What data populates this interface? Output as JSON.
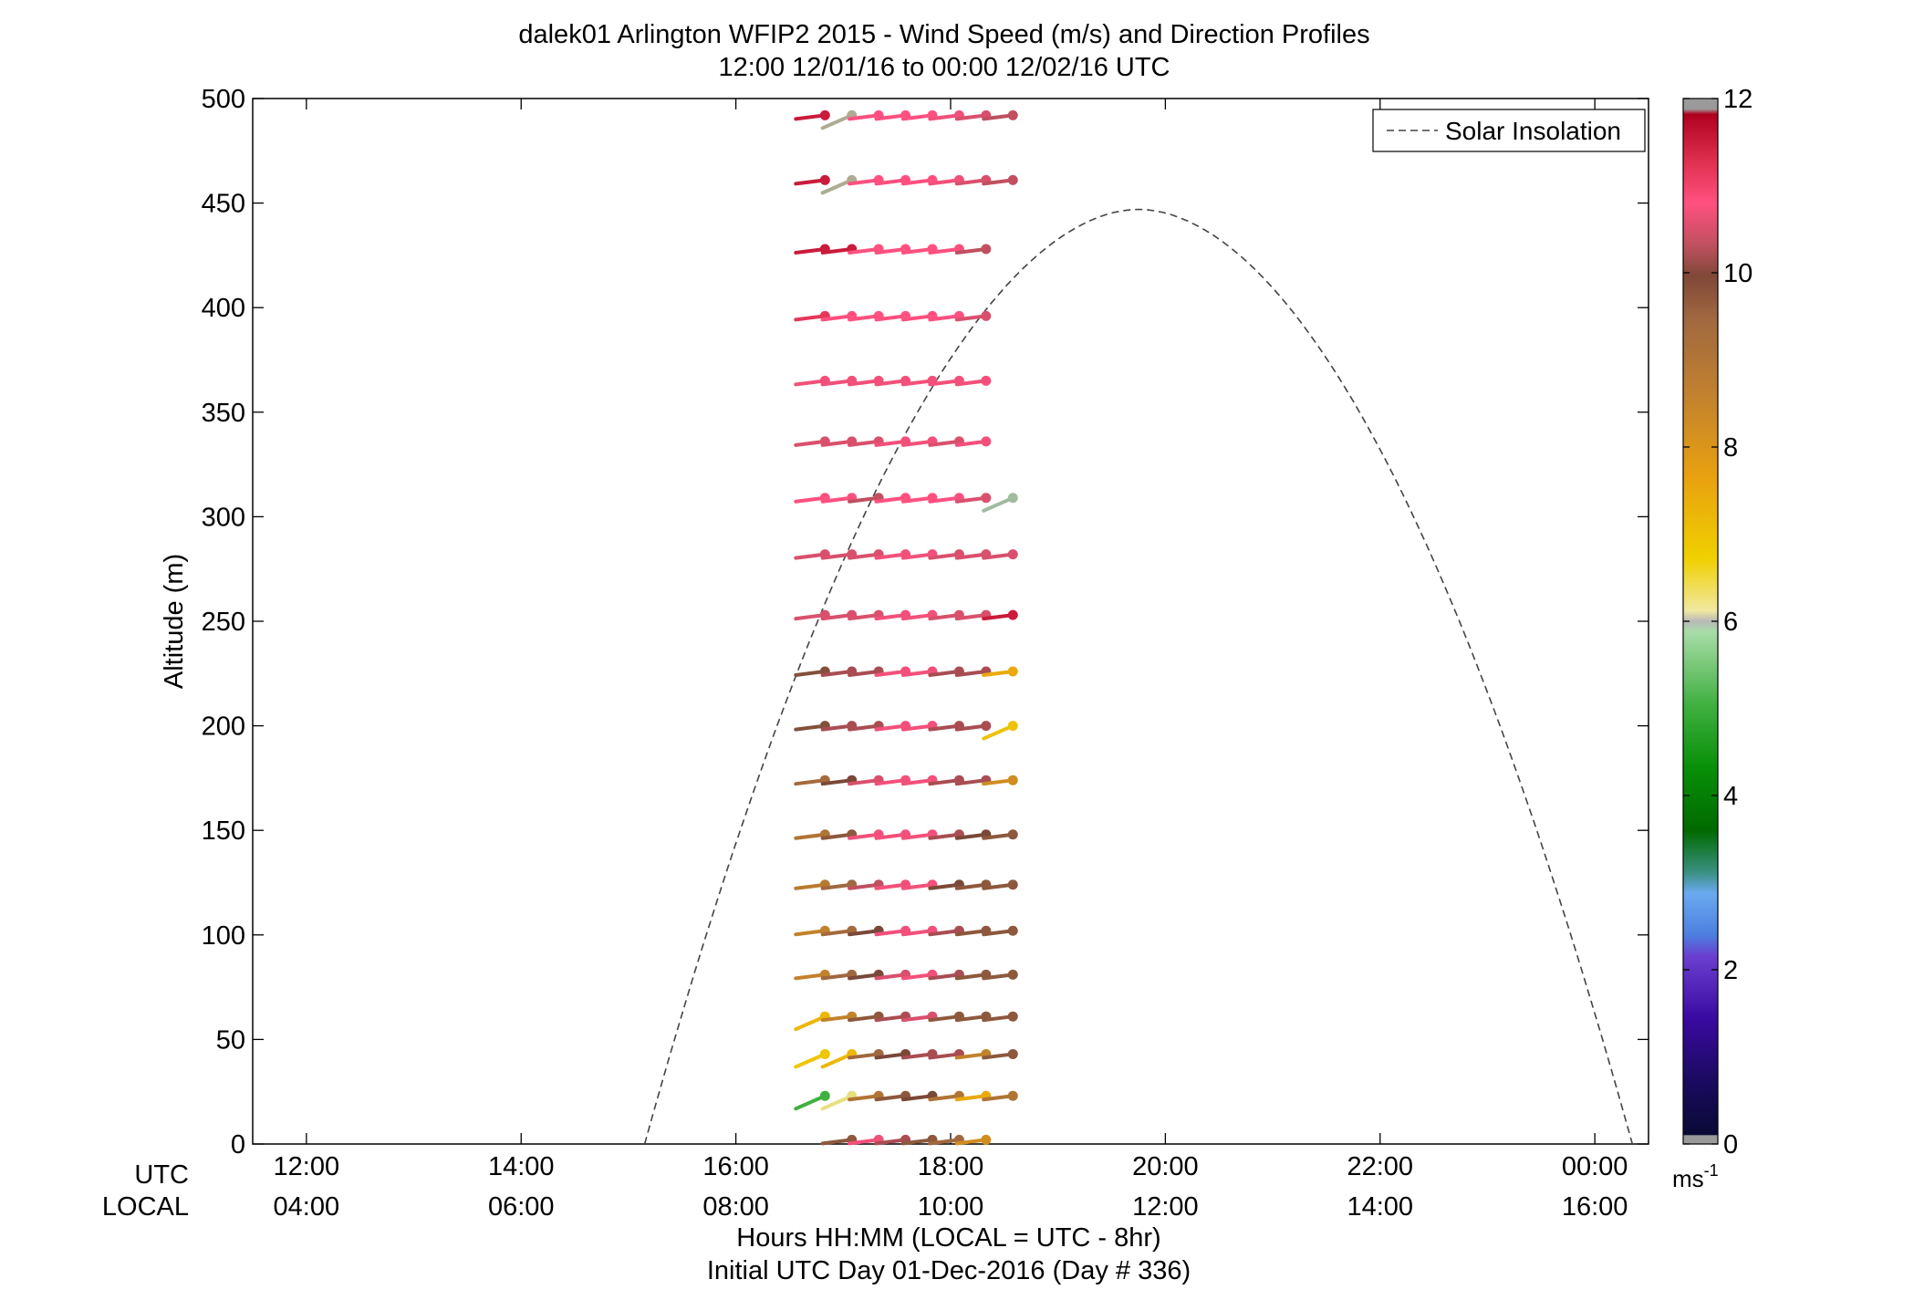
{
  "chart_data": {
    "type": "scatter",
    "title": "dalek01 Arlington WFIP2 2015 - Wind Speed (m/s) and Direction Profiles",
    "subtitle": "12:00 12/01/16 to 00:00 12/02/16  UTC",
    "ylabel": "Altitude (m)",
    "xlabel": "Hours HH:MM  (LOCAL = UTC - 8hr)",
    "xlabel2": "Initial UTC Day 01-Dec-2016 (Day # 336)",
    "row_label_utc": "UTC",
    "row_label_local": "LOCAL",
    "xlim": [
      11.5,
      24.5
    ],
    "ylim": [
      0,
      500
    ],
    "grid": false,
    "legend_position": "top-right",
    "yticks": [
      0,
      50,
      100,
      150,
      200,
      250,
      300,
      350,
      400,
      450,
      500
    ],
    "xticks": [
      12,
      14,
      16,
      18,
      20,
      22,
      24
    ],
    "xtick_labels_utc": [
      "12:00",
      "14:00",
      "16:00",
      "18:00",
      "20:00",
      "22:00",
      "00:00"
    ],
    "xtick_labels_local": [
      "04:00",
      "06:00",
      "08:00",
      "10:00",
      "12:00",
      "14:00",
      "16:00"
    ],
    "solar_insolation": {
      "label": "Solar Insolation",
      "style": "dashed",
      "color": "#444444",
      "start_hour": 15.15,
      "end_hour": 24.35,
      "peak_hour": 19.75,
      "peak_altitude": 447
    },
    "colorbar": {
      "ticks": [
        0,
        2,
        4,
        6,
        8,
        10,
        12
      ],
      "min": 0,
      "max": 12,
      "units": "ms",
      "units_exp": "-1"
    },
    "times": [
      16.83,
      17.08,
      17.33,
      17.58,
      17.83,
      18.08,
      18.33,
      18.58
    ],
    "wind_profiles": [
      {
        "alt": 492,
        "start": 0,
        "speeds": [
          11.6,
          6.2,
          10.8,
          10.8,
          10.8,
          10.7,
          10.5,
          10.3
        ]
      },
      {
        "alt": 461,
        "start": 0,
        "speeds": [
          11.6,
          6.2,
          10.8,
          10.8,
          10.8,
          10.7,
          10.5,
          10.3
        ]
      },
      {
        "alt": 428,
        "start": 0,
        "speeds": [
          11.6,
          11.6,
          10.8,
          10.8,
          10.8,
          10.8,
          10.3,
          null
        ]
      },
      {
        "alt": 396,
        "start": 0,
        "speeds": [
          11.2,
          10.8,
          10.8,
          10.8,
          10.8,
          10.8,
          10.5,
          null
        ]
      },
      {
        "alt": 365,
        "start": 0,
        "speeds": [
          10.7,
          10.7,
          10.7,
          10.7,
          10.7,
          10.7,
          10.7,
          null
        ]
      },
      {
        "alt": 336,
        "start": 0,
        "speeds": [
          10.5,
          10.5,
          10.5,
          10.7,
          10.7,
          10.5,
          10.7,
          null
        ]
      },
      {
        "alt": 309,
        "start": 0,
        "speeds": [
          10.8,
          10.8,
          10.3,
          10.8,
          10.8,
          10.8,
          10.5,
          6.0
        ]
      },
      {
        "alt": 282,
        "start": 0,
        "speeds": [
          10.5,
          10.5,
          10.5,
          10.7,
          10.7,
          10.5,
          10.5,
          10.5
        ]
      },
      {
        "alt": 253,
        "start": 0,
        "speeds": [
          10.5,
          10.5,
          10.5,
          10.7,
          10.7,
          10.5,
          10.5,
          11.6
        ]
      },
      {
        "alt": 226,
        "start": 0,
        "speeds": [
          9.9,
          10.2,
          10.2,
          10.7,
          10.7,
          10.2,
          10.2,
          7.8
        ]
      },
      {
        "alt": 200,
        "start": 0,
        "speeds": [
          9.9,
          10.2,
          10.2,
          10.7,
          10.7,
          10.2,
          10.2,
          7.3
        ]
      },
      {
        "alt": 174,
        "start": 0,
        "speeds": [
          9.5,
          10.0,
          10.5,
          10.7,
          10.7,
          10.2,
          10.2,
          8.5
        ]
      },
      {
        "alt": 148,
        "start": 0,
        "speeds": [
          9.2,
          9.8,
          10.7,
          10.7,
          10.7,
          10.2,
          10.0,
          9.8
        ]
      },
      {
        "alt": 124,
        "start": 0,
        "speeds": [
          9.0,
          9.6,
          10.3,
          10.7,
          10.7,
          10.0,
          9.8,
          9.8
        ]
      },
      {
        "alt": 102,
        "start": 0,
        "speeds": [
          8.8,
          9.5,
          10.0,
          10.7,
          10.7,
          10.2,
          9.8,
          9.8
        ]
      },
      {
        "alt": 81,
        "start": 0,
        "speeds": [
          8.8,
          9.6,
          10.0,
          10.5,
          10.7,
          10.2,
          9.8,
          9.8
        ]
      },
      {
        "alt": 61,
        "start": 0,
        "speeds": [
          7.5,
          8.8,
          9.8,
          10.2,
          10.5,
          9.8,
          9.8,
          9.8
        ]
      },
      {
        "alt": 43,
        "start": 0,
        "speeds": [
          7.2,
          7.5,
          9.6,
          10.0,
          10.2,
          10.2,
          8.8,
          9.8
        ]
      },
      {
        "alt": 23,
        "start": 0,
        "speeds": [
          5.2,
          6.5,
          9.2,
          9.8,
          10.0,
          9.2,
          7.8,
          9.2
        ]
      },
      {
        "alt": 2,
        "start": 1,
        "speeds": [
          9.8,
          10.7,
          10.2,
          9.8,
          9.6,
          8.5
        ]
      }
    ]
  }
}
